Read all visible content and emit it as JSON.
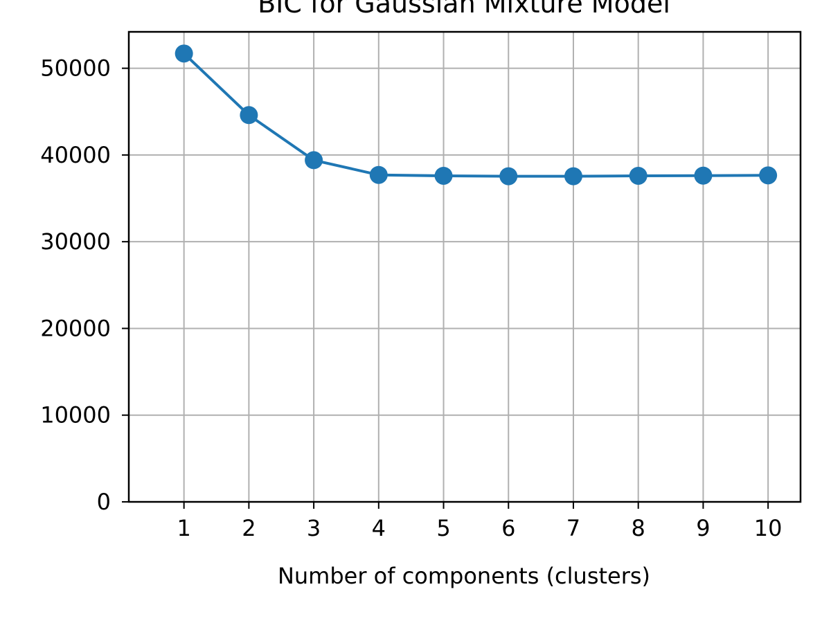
{
  "chart_data": {
    "type": "line",
    "title": "BIC for Gaussian Mixture Model",
    "xlabel": "Number of components (clusters)",
    "ylabel": "",
    "x": [
      1,
      2,
      3,
      4,
      5,
      6,
      7,
      8,
      9,
      10
    ],
    "series": [
      {
        "values": [
          51700,
          44600,
          39400,
          37700,
          37600,
          37550,
          37550,
          37600,
          37620,
          37650
        ],
        "color": "#1f77b4",
        "marker": "circle"
      }
    ],
    "xlim": [
      0.15,
      10.5
    ],
    "ylim": [
      0,
      54200
    ],
    "xticks": [
      1,
      2,
      3,
      4,
      5,
      6,
      7,
      8,
      9,
      10
    ],
    "yticks": [
      0,
      10000,
      20000,
      30000,
      40000,
      50000
    ],
    "grid": true
  }
}
